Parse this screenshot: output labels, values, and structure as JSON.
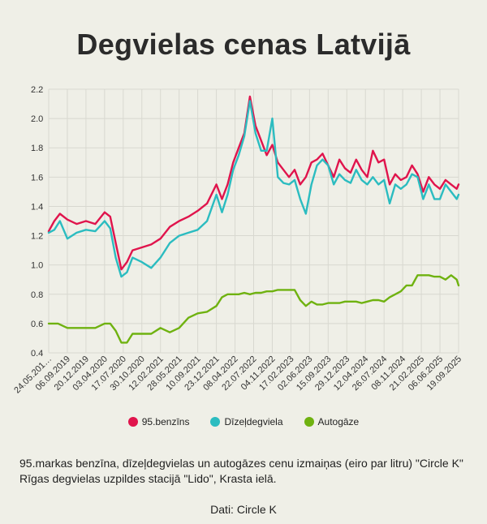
{
  "title": "Degvielas cenas Latvijā",
  "caption": {
    "line1": "95.markas benzīna, dīzeļdegvielas un autogāzes cenu izmaiņas (eiro par litru) \"Circle K\"",
    "line2": "Rīgas degvielas uzpildes stacijā \"Lido\", Krasta ielā."
  },
  "source": "Dati: Circle K",
  "legend": [
    {
      "label": "95.benzīns",
      "color": "#e0144c"
    },
    {
      "label": "Dīzeļdegviela",
      "color": "#2bbcc0"
    },
    {
      "label": "Autogāze",
      "color": "#6fb210"
    }
  ],
  "chart_data": {
    "type": "line",
    "xlabel": "",
    "ylabel": "",
    "ylim": [
      0.4,
      2.2
    ],
    "yticks": [
      "0.4",
      "0.6",
      "0.8",
      "1.0",
      "1.2",
      "1.4",
      "1.6",
      "1.8",
      "2.0",
      "2.2"
    ],
    "grid": true,
    "legend_position": "bottom",
    "x_tick_labels": [
      "24.05.201…",
      "06.09.2019",
      "20.12.2019",
      "03.04.2020",
      "17.07.2020",
      "30.10.2020",
      "12.02.2021",
      "28.05.2021",
      "10.09.2021",
      "23.12.2021",
      "08.04.2022",
      "22.07.2022",
      "04.11.2022",
      "17.02.2023",
      "02.06.2023",
      "15.09.2023",
      "29.12.2023",
      "12.04.2024",
      "26.07.2024",
      "08.11.2024",
      "21.02.2025",
      "06.06.2025",
      "19.09.2025"
    ],
    "series": [
      {
        "name": "95.benzīns",
        "color": "#e0144c",
        "x": [
          0,
          0.3,
          0.6,
          1.0,
          1.5,
          2.0,
          2.5,
          3.0,
          3.3,
          3.6,
          3.9,
          4.2,
          4.5,
          5.0,
          5.5,
          6.0,
          6.5,
          7.0,
          7.5,
          8.0,
          8.5,
          9.0,
          9.3,
          9.6,
          9.9,
          10.2,
          10.5,
          10.8,
          11.1,
          11.4,
          11.7,
          12.0,
          12.3,
          12.6,
          12.9,
          13.2,
          13.5,
          13.8,
          14.1,
          14.4,
          14.7,
          15.0,
          15.3,
          15.6,
          15.9,
          16.2,
          16.5,
          16.8,
          17.1,
          17.4,
          17.7,
          18.0,
          18.3,
          18.6,
          18.9,
          19.2,
          19.5,
          19.8,
          20.1,
          20.4,
          20.7,
          21.0,
          21.3,
          21.6,
          21.9,
          22.0
        ],
        "values": [
          1.23,
          1.3,
          1.35,
          1.31,
          1.28,
          1.3,
          1.28,
          1.36,
          1.33,
          1.15,
          0.97,
          1.02,
          1.1,
          1.12,
          1.14,
          1.18,
          1.26,
          1.3,
          1.33,
          1.37,
          1.42,
          1.55,
          1.45,
          1.55,
          1.7,
          1.8,
          1.9,
          2.15,
          1.95,
          1.85,
          1.75,
          1.82,
          1.7,
          1.65,
          1.6,
          1.65,
          1.55,
          1.6,
          1.7,
          1.72,
          1.76,
          1.68,
          1.6,
          1.72,
          1.66,
          1.63,
          1.72,
          1.65,
          1.6,
          1.78,
          1.7,
          1.72,
          1.55,
          1.62,
          1.58,
          1.6,
          1.68,
          1.62,
          1.5,
          1.6,
          1.55,
          1.52,
          1.58,
          1.55,
          1.52,
          1.55
        ]
      },
      {
        "name": "Dīzeļdegviela",
        "color": "#2bbcc0",
        "x": [
          0,
          0.3,
          0.6,
          1.0,
          1.5,
          2.0,
          2.5,
          3.0,
          3.3,
          3.6,
          3.9,
          4.2,
          4.5,
          5.0,
          5.5,
          6.0,
          6.5,
          7.0,
          7.5,
          8.0,
          8.5,
          9.0,
          9.3,
          9.6,
          9.9,
          10.2,
          10.5,
          10.8,
          11.1,
          11.4,
          11.7,
          12.0,
          12.3,
          12.6,
          12.9,
          13.2,
          13.5,
          13.8,
          14.1,
          14.4,
          14.7,
          15.0,
          15.3,
          15.6,
          15.9,
          16.2,
          16.5,
          16.8,
          17.1,
          17.4,
          17.7,
          18.0,
          18.3,
          18.6,
          18.9,
          19.2,
          19.5,
          19.8,
          20.1,
          20.4,
          20.7,
          21.0,
          21.3,
          21.6,
          21.9,
          22.0
        ],
        "values": [
          1.22,
          1.24,
          1.3,
          1.18,
          1.22,
          1.24,
          1.23,
          1.3,
          1.25,
          1.05,
          0.92,
          0.95,
          1.05,
          1.02,
          0.98,
          1.05,
          1.15,
          1.2,
          1.22,
          1.24,
          1.3,
          1.48,
          1.36,
          1.48,
          1.65,
          1.75,
          1.88,
          2.12,
          1.9,
          1.78,
          1.78,
          2.0,
          1.6,
          1.56,
          1.55,
          1.58,
          1.45,
          1.35,
          1.55,
          1.68,
          1.72,
          1.68,
          1.55,
          1.62,
          1.58,
          1.56,
          1.65,
          1.58,
          1.55,
          1.6,
          1.55,
          1.58,
          1.42,
          1.55,
          1.52,
          1.55,
          1.62,
          1.6,
          1.45,
          1.55,
          1.45,
          1.45,
          1.55,
          1.5,
          1.45,
          1.48
        ]
      },
      {
        "name": "Autogāze",
        "color": "#6fb210",
        "x": [
          0,
          0.5,
          1.0,
          1.5,
          2.0,
          2.5,
          3.0,
          3.3,
          3.6,
          3.9,
          4.2,
          4.5,
          5.0,
          5.5,
          6.0,
          6.5,
          7.0,
          7.5,
          8.0,
          8.5,
          9.0,
          9.3,
          9.6,
          9.9,
          10.2,
          10.5,
          10.8,
          11.1,
          11.4,
          11.7,
          12.0,
          12.3,
          12.6,
          12.9,
          13.2,
          13.5,
          13.8,
          14.1,
          14.4,
          14.7,
          15.0,
          15.3,
          15.6,
          15.9,
          16.2,
          16.5,
          16.8,
          17.1,
          17.4,
          17.7,
          18.0,
          18.3,
          18.6,
          18.9,
          19.2,
          19.5,
          19.8,
          20.1,
          20.4,
          20.7,
          21.0,
          21.3,
          21.6,
          21.9,
          22.0
        ],
        "values": [
          0.6,
          0.6,
          0.57,
          0.57,
          0.57,
          0.57,
          0.6,
          0.6,
          0.55,
          0.47,
          0.47,
          0.53,
          0.53,
          0.53,
          0.57,
          0.54,
          0.57,
          0.64,
          0.67,
          0.68,
          0.72,
          0.78,
          0.8,
          0.8,
          0.8,
          0.81,
          0.8,
          0.81,
          0.81,
          0.82,
          0.82,
          0.83,
          0.83,
          0.83,
          0.83,
          0.76,
          0.72,
          0.75,
          0.73,
          0.73,
          0.74,
          0.74,
          0.74,
          0.75,
          0.75,
          0.75,
          0.74,
          0.75,
          0.76,
          0.76,
          0.75,
          0.78,
          0.8,
          0.82,
          0.86,
          0.86,
          0.93,
          0.93,
          0.93,
          0.92,
          0.92,
          0.9,
          0.93,
          0.9,
          0.86
        ]
      }
    ]
  }
}
